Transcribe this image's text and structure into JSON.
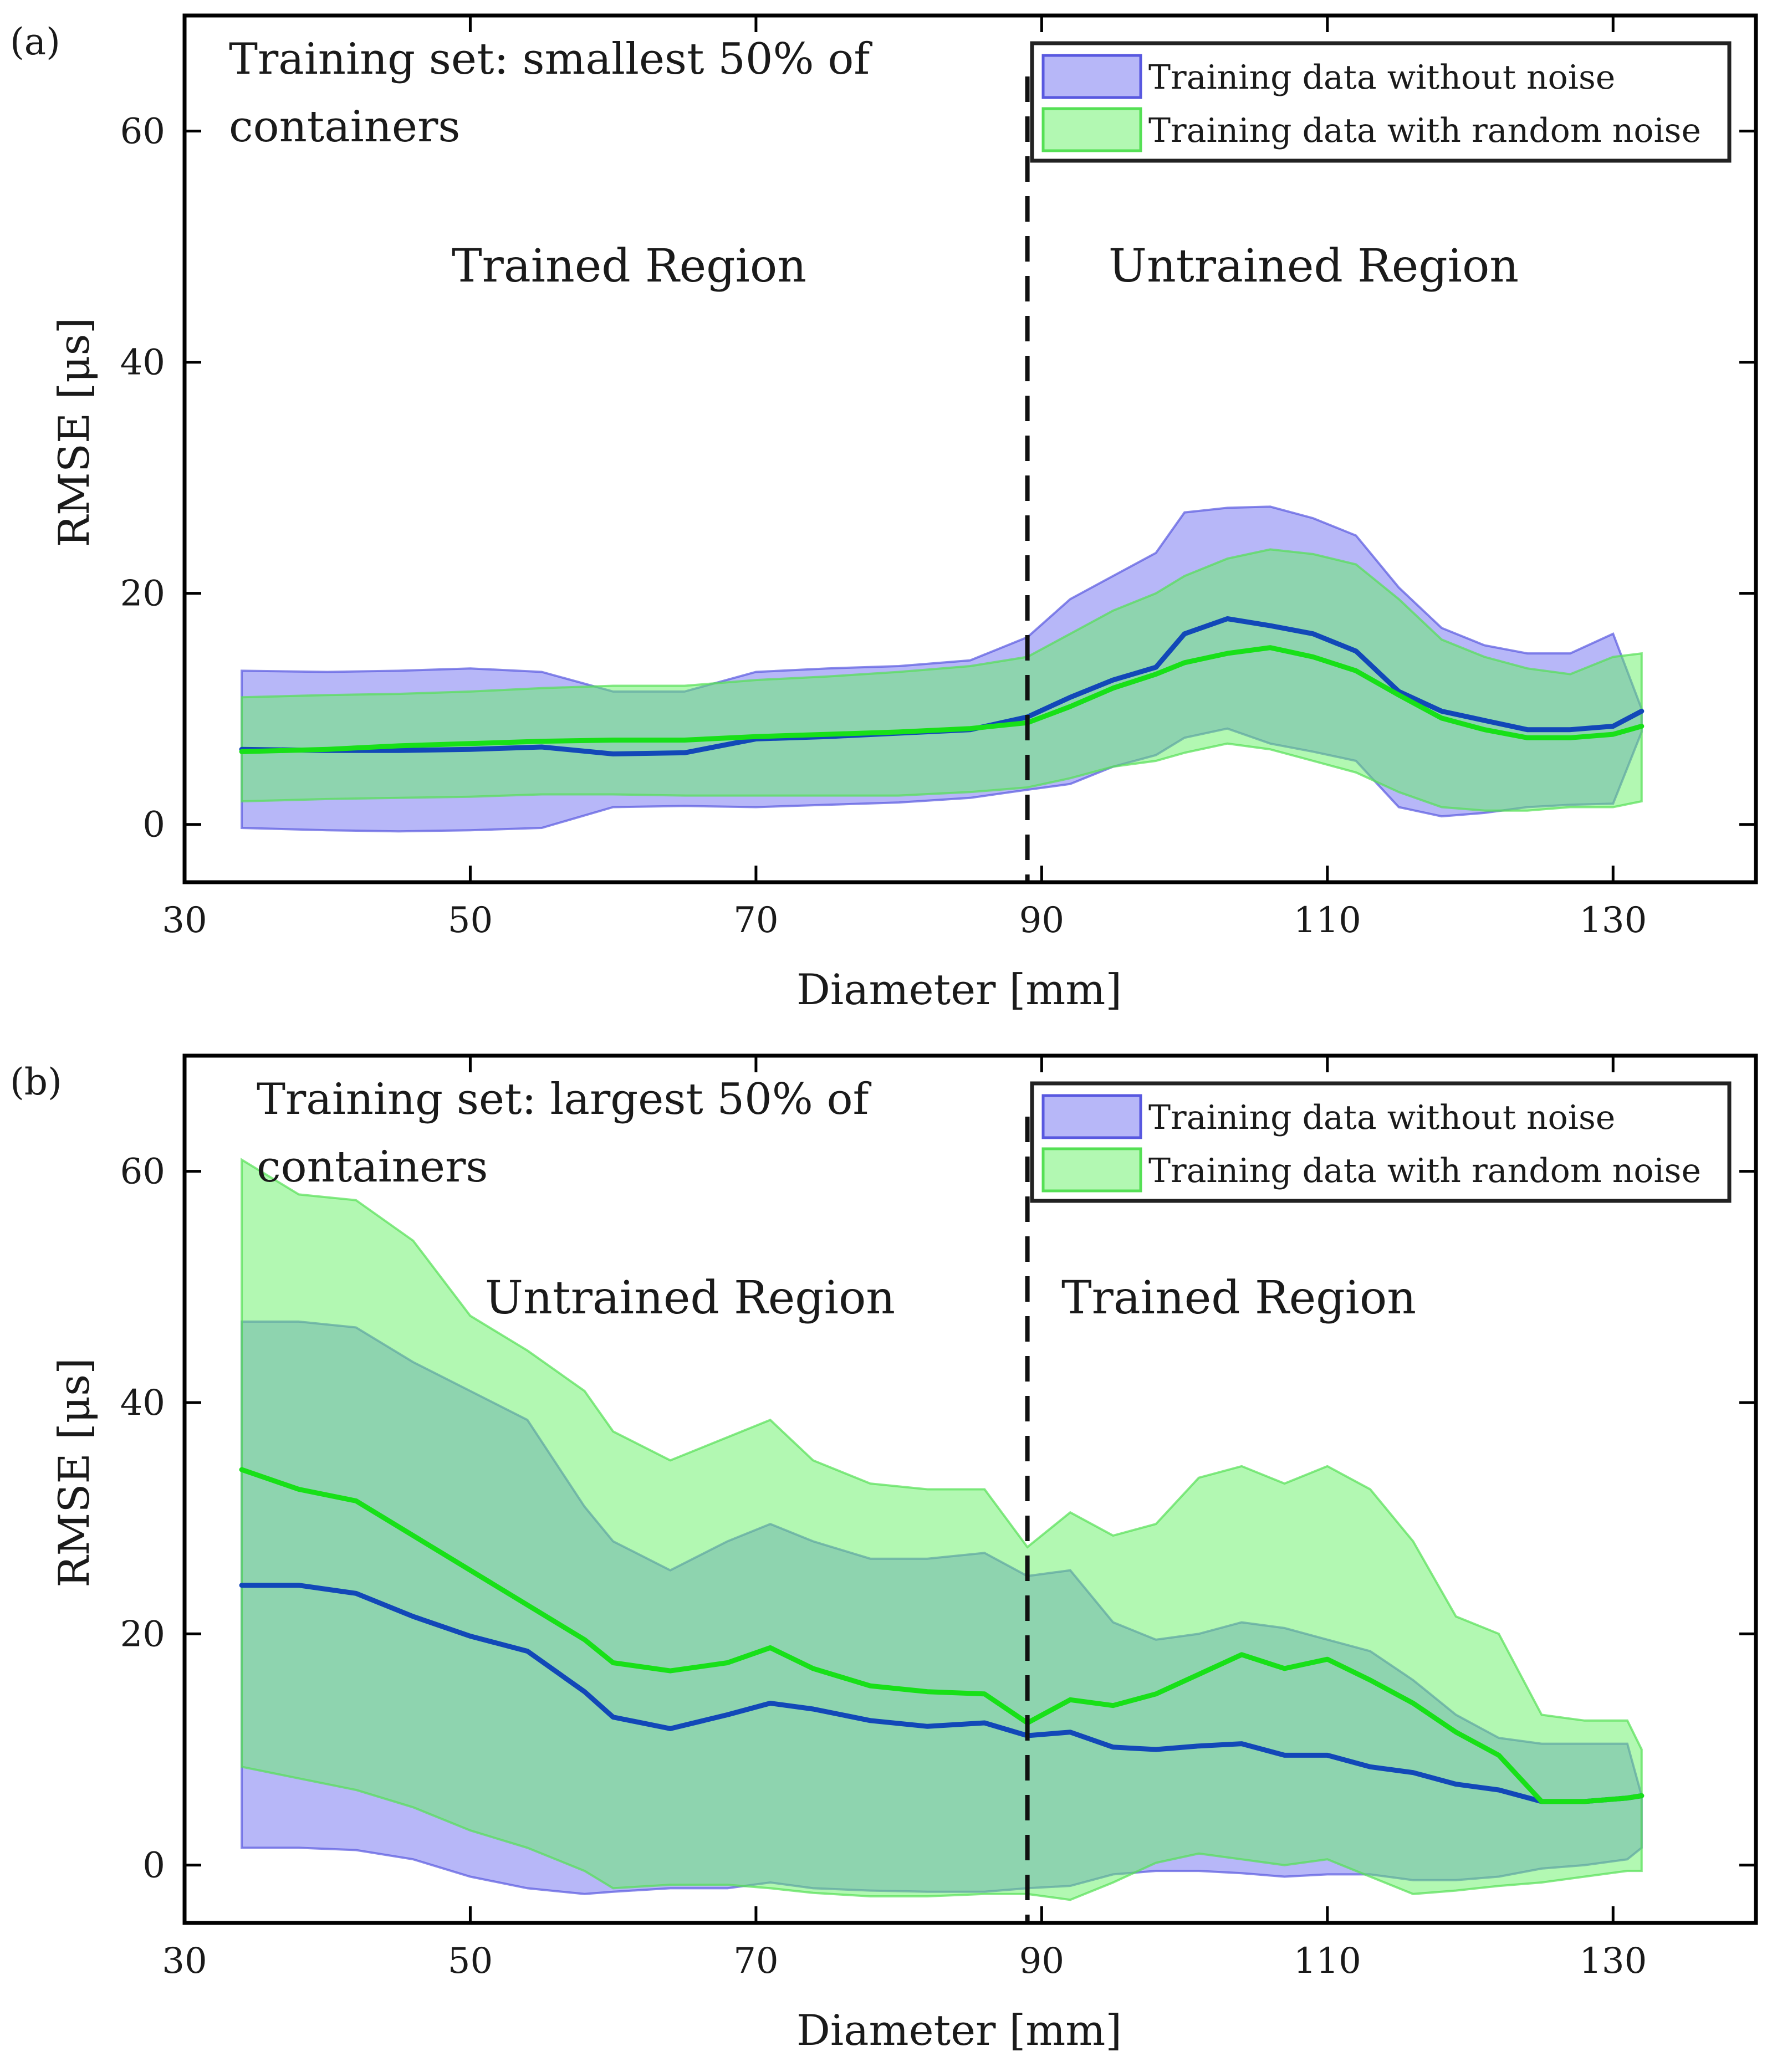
{
  "figure": {
    "colors": {
      "no_noise_band": "#6f6ff2",
      "no_noise_band_edge": "#5858e0",
      "no_noise_line": "#1248b8",
      "noise_band": "#66f266",
      "noise_band_edge": "#55e055",
      "noise_line": "#18e018",
      "axes": "#000000"
    }
  },
  "chart_data": [
    {
      "type": "area",
      "panel_label": "(a)",
      "annotation": [
        "Training set: smallest 50% of",
        "containers"
      ],
      "region_left": "Trained Region",
      "region_right": "Untrained Region",
      "xlabel": "Diameter [mm]",
      "ylabel": "RMSE [μs]",
      "xlim": [
        30,
        140
      ],
      "ylim": [
        -5,
        70
      ],
      "xticks": [
        30,
        50,
        70,
        90,
        110,
        130
      ],
      "yticks": [
        0,
        20,
        40,
        60
      ],
      "divider_x": 89,
      "legend_position": "top-right",
      "series": [
        {
          "name": "Training data without noise",
          "x": [
            34,
            40,
            45,
            50,
            55,
            60,
            65,
            70,
            75,
            80,
            85,
            89,
            92,
            95,
            98,
            100,
            103,
            106,
            109,
            112,
            115,
            118,
            121,
            124,
            127,
            130,
            132
          ],
          "upper": [
            13.3,
            13.2,
            13.3,
            13.5,
            13.2,
            11.5,
            11.5,
            13.2,
            13.5,
            13.7,
            14.2,
            16.2,
            19.5,
            21.5,
            23.5,
            27,
            27.4,
            27.5,
            26.5,
            25,
            20.5,
            17,
            15.5,
            14.8,
            14.8,
            16.5,
            10
          ],
          "mean": [
            6.5,
            6.4,
            6.4,
            6.5,
            6.7,
            6.1,
            6.2,
            7.4,
            7.6,
            7.9,
            8.2,
            9.3,
            11,
            12.5,
            13.6,
            16.5,
            17.8,
            17.2,
            16.5,
            15,
            11.5,
            9.8,
            9,
            8.2,
            8.2,
            8.5,
            9.8
          ],
          "lower": [
            -0.3,
            -0.5,
            -0.6,
            -0.5,
            -0.3,
            1.5,
            1.6,
            1.5,
            1.7,
            1.9,
            2.3,
            3,
            3.5,
            5,
            6,
            7.5,
            8.3,
            7,
            6.3,
            5.5,
            1.5,
            0.7,
            1,
            1.5,
            1.7,
            1.8,
            8
          ]
        },
        {
          "name": "Training data with random noise",
          "x": [
            34,
            40,
            45,
            50,
            55,
            60,
            65,
            70,
            75,
            80,
            85,
            89,
            92,
            95,
            98,
            100,
            103,
            106,
            109,
            112,
            115,
            118,
            121,
            124,
            127,
            130,
            132
          ],
          "upper": [
            11,
            11.2,
            11.3,
            11.5,
            11.8,
            12,
            12,
            12.5,
            12.8,
            13.2,
            13.7,
            14.5,
            16.5,
            18.5,
            20,
            21.5,
            23,
            23.8,
            23.4,
            22.5,
            19.5,
            16,
            14.5,
            13.5,
            13,
            14.5,
            14.8
          ],
          "mean": [
            6.3,
            6.5,
            6.8,
            7,
            7.2,
            7.3,
            7.3,
            7.6,
            7.8,
            8,
            8.3,
            8.8,
            10.2,
            11.8,
            13,
            14,
            14.8,
            15.3,
            14.5,
            13.3,
            11.2,
            9.2,
            8.2,
            7.5,
            7.5,
            7.8,
            8.5
          ],
          "lower": [
            2,
            2.2,
            2.3,
            2.4,
            2.6,
            2.6,
            2.5,
            2.5,
            2.5,
            2.5,
            2.8,
            3.2,
            4,
            5,
            5.5,
            6.2,
            7,
            6.5,
            5.5,
            4.5,
            2.8,
            1.5,
            1.2,
            1.2,
            1.5,
            1.5,
            2
          ]
        }
      ]
    },
    {
      "type": "area",
      "panel_label": "(b)",
      "annotation": [
        "Training set: largest 50% of",
        "containers"
      ],
      "region_left": "Untrained Region",
      "region_right": "Trained Region",
      "xlabel": "Diameter [mm]",
      "ylabel": "RMSE [μs]",
      "xlim": [
        30,
        140
      ],
      "ylim": [
        -5,
        70
      ],
      "xticks": [
        30,
        50,
        70,
        90,
        110,
        130
      ],
      "yticks": [
        0,
        20,
        40,
        60
      ],
      "divider_x": 89,
      "legend_position": "top-right",
      "series": [
        {
          "name": "Training data without noise",
          "x": [
            34,
            38,
            42,
            46,
            50,
            54,
            58,
            60,
            64,
            68,
            71,
            74,
            78,
            82,
            86,
            89,
            92,
            95,
            98,
            101,
            104,
            107,
            110,
            113,
            116,
            119,
            122,
            125,
            128,
            131,
            132
          ],
          "upper": [
            47,
            47,
            46.5,
            43.5,
            41,
            38.5,
            31,
            28,
            25.5,
            28,
            29.5,
            28,
            26.5,
            26.5,
            27,
            25,
            25.5,
            21,
            19.5,
            20,
            21,
            20.5,
            19.5,
            18.5,
            16,
            13,
            11,
            10.5,
            10.5,
            10.5,
            6
          ],
          "mean": [
            24.2,
            24.2,
            23.5,
            21.5,
            19.8,
            18.5,
            15,
            12.8,
            11.8,
            13,
            14,
            13.5,
            12.5,
            12,
            12.3,
            11.2,
            11.5,
            10.2,
            10,
            10.3,
            10.5,
            9.5,
            9.5,
            8.5,
            8,
            7,
            6.5,
            5.5,
            5.5,
            5.8,
            6
          ],
          "lower": [
            1.5,
            1.5,
            1.3,
            0.5,
            -1,
            -2,
            -2.5,
            -2.3,
            -2,
            -2,
            -1.5,
            -2,
            -2.2,
            -2.3,
            -2.3,
            -2,
            -1.8,
            -0.8,
            -0.5,
            -0.5,
            -0.7,
            -1,
            -0.8,
            -0.8,
            -1.3,
            -1.3,
            -1,
            -0.3,
            0,
            0.5,
            1.5
          ]
        },
        {
          "name": "Training data with random noise",
          "x": [
            34,
            38,
            42,
            46,
            50,
            54,
            58,
            60,
            64,
            68,
            71,
            74,
            78,
            82,
            86,
            89,
            92,
            95,
            98,
            101,
            104,
            107,
            110,
            113,
            116,
            119,
            122,
            125,
            128,
            131,
            132
          ],
          "upper": [
            61,
            58,
            57.5,
            54,
            47.5,
            44.5,
            41,
            37.5,
            35,
            37,
            38.5,
            35,
            33,
            32.5,
            32.5,
            27.5,
            30.5,
            28.5,
            29.5,
            33.5,
            34.5,
            33,
            34.5,
            32.5,
            28,
            21.5,
            20,
            13,
            12.5,
            12.5,
            10
          ],
          "mean": [
            34.2,
            32.5,
            31.5,
            28.5,
            25.5,
            22.5,
            19.5,
            17.5,
            16.8,
            17.5,
            18.8,
            17,
            15.5,
            15,
            14.8,
            12.3,
            14.3,
            13.8,
            14.8,
            16.5,
            18.2,
            17,
            17.8,
            16,
            14,
            11.5,
            9.5,
            5.5,
            5.5,
            5.8,
            6
          ],
          "lower": [
            8.5,
            7.5,
            6.5,
            5,
            3,
            1.5,
            -0.5,
            -2,
            -1.7,
            -1.7,
            -2,
            -2.4,
            -2.7,
            -2.7,
            -2.5,
            -2.5,
            -3,
            -1.5,
            0.2,
            1,
            0.5,
            0,
            0.5,
            -1,
            -2.5,
            -2.2,
            -1.8,
            -1.5,
            -1,
            -0.5,
            -0.5
          ]
        }
      ]
    }
  ]
}
